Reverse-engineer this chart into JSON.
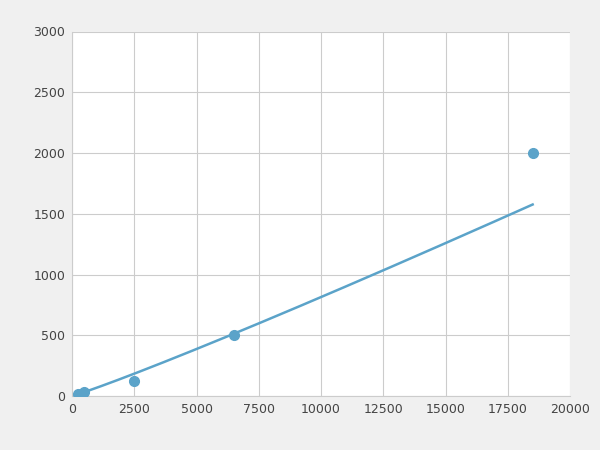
{
  "x": [
    250,
    500,
    2500,
    6500,
    18500
  ],
  "y": [
    20,
    30,
    125,
    500,
    2000
  ],
  "line_color": "#5ba3c9",
  "marker_color": "#5ba3c9",
  "marker_size": 7,
  "line_width": 1.8,
  "xlim": [
    0,
    20000
  ],
  "ylim": [
    0,
    3000
  ],
  "xticks": [
    0,
    2500,
    5000,
    7500,
    10000,
    12500,
    15000,
    17500,
    20000
  ],
  "yticks": [
    0,
    500,
    1000,
    1500,
    2000,
    2500,
    3000
  ],
  "grid_color": "#cccccc",
  "bg_color": "#ffffff",
  "fig_bg_color": "#f0f0f0"
}
